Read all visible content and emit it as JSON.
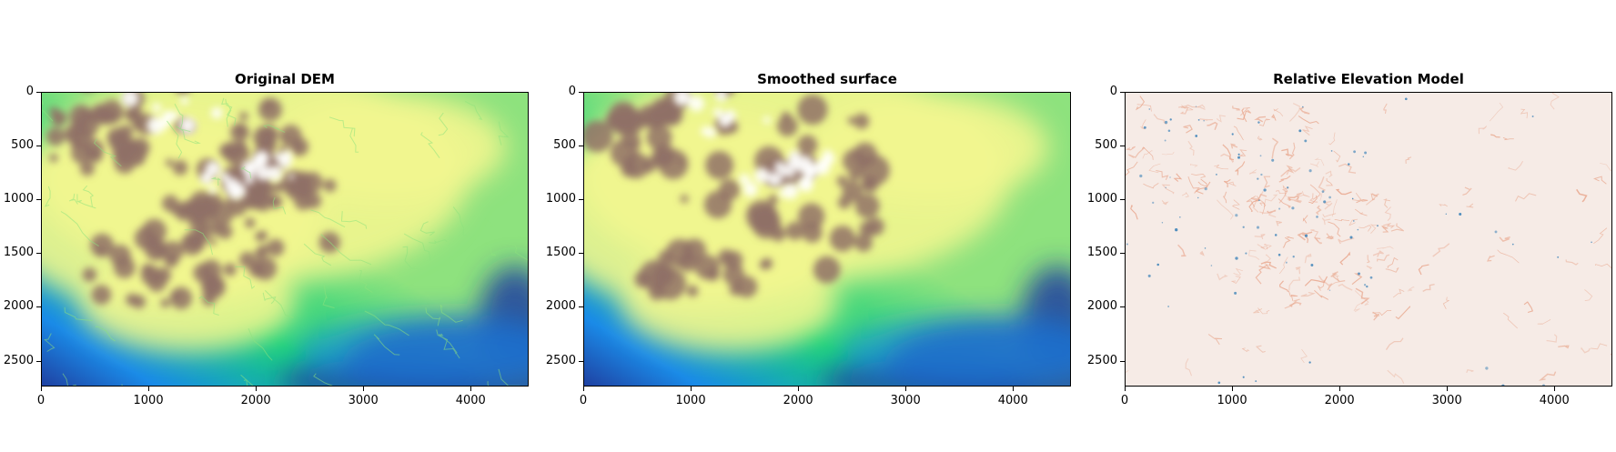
{
  "panels": [
    {
      "title": "Original DEM",
      "kind": "dem",
      "colormap": "terrain",
      "x_ticks": [
        "0",
        "1000",
        "2000",
        "3000",
        "4000"
      ],
      "y_ticks": [
        "0",
        "500",
        "1000",
        "1500",
        "2000",
        "2500"
      ]
    },
    {
      "title": "Smoothed surface",
      "kind": "smooth",
      "colormap": "terrain",
      "x_ticks": [
        "0",
        "1000",
        "2000",
        "3000",
        "4000"
      ],
      "y_ticks": [
        "0",
        "500",
        "1000",
        "1500",
        "2000",
        "2500"
      ]
    },
    {
      "title": "Relative Elevation Model",
      "kind": "rem",
      "colormap": "RdBu",
      "x_ticks": [
        "0",
        "1000",
        "2000",
        "3000",
        "4000"
      ],
      "y_ticks": [
        "0",
        "500",
        "1000",
        "1500",
        "2000",
        "2500"
      ]
    }
  ],
  "colors": {
    "terrain": [
      "#1f3fa0",
      "#1a8be8",
      "#14d07a",
      "#8ee27e",
      "#f2f68f",
      "#c9b879",
      "#8f7066",
      "#b8a8a4",
      "#ffffff"
    ],
    "rem_background": "#f6ebe6",
    "rem_positive": "#e8a58b",
    "rem_negative": "#3c82b8"
  }
}
